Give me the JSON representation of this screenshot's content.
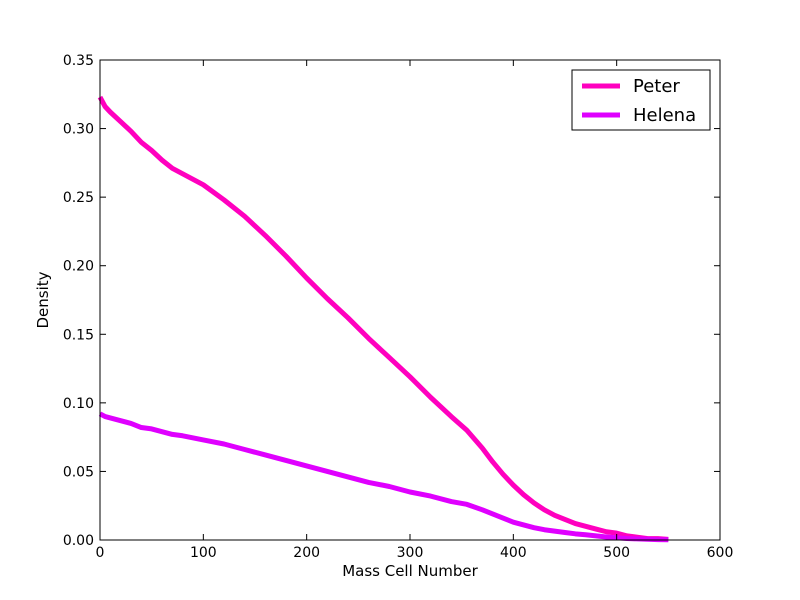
{
  "chart_data": {
    "type": "line",
    "title": "",
    "xlabel": "Mass Cell Number",
    "ylabel": "Density",
    "xlim": [
      0,
      600
    ],
    "ylim": [
      0,
      0.35
    ],
    "xticks": [
      0,
      100,
      200,
      300,
      400,
      500,
      600
    ],
    "xtick_labels": [
      "0",
      "100",
      "200",
      "300",
      "400",
      "500",
      "600"
    ],
    "yticks": [
      0.0,
      0.05,
      0.1,
      0.15,
      0.2,
      0.25,
      0.3,
      0.35
    ],
    "ytick_labels": [
      "0.00",
      "0.05",
      "0.10",
      "0.15",
      "0.20",
      "0.25",
      "0.30",
      "0.35"
    ],
    "grid": false,
    "legend": {
      "position": "top-right"
    },
    "series": [
      {
        "name": "Peter",
        "color": "#ff00bf",
        "x": [
          0,
          5,
          10,
          20,
          30,
          40,
          50,
          60,
          70,
          80,
          100,
          120,
          140,
          160,
          180,
          200,
          220,
          240,
          260,
          280,
          300,
          320,
          340,
          355,
          370,
          380,
          390,
          400,
          410,
          420,
          430,
          440,
          450,
          460,
          470,
          480,
          490,
          500,
          510,
          520,
          530,
          540,
          550
        ],
        "y": [
          0.323,
          0.316,
          0.312,
          0.305,
          0.298,
          0.29,
          0.284,
          0.277,
          0.271,
          0.267,
          0.259,
          0.248,
          0.236,
          0.222,
          0.207,
          0.191,
          0.176,
          0.162,
          0.147,
          0.133,
          0.119,
          0.104,
          0.09,
          0.08,
          0.067,
          0.057,
          0.048,
          0.04,
          0.033,
          0.027,
          0.022,
          0.018,
          0.015,
          0.012,
          0.01,
          0.008,
          0.006,
          0.005,
          0.003,
          0.002,
          0.001,
          0.001,
          0.0005
        ]
      },
      {
        "name": "Helena",
        "color": "#df00ff",
        "x": [
          0,
          5,
          10,
          20,
          30,
          40,
          50,
          60,
          70,
          80,
          100,
          120,
          140,
          160,
          180,
          200,
          220,
          240,
          260,
          280,
          300,
          320,
          340,
          355,
          370,
          380,
          390,
          400,
          410,
          420,
          430,
          440,
          450,
          460,
          470,
          480,
          490,
          500,
          510,
          520,
          530,
          540,
          550
        ],
        "y": [
          0.092,
          0.09,
          0.089,
          0.087,
          0.085,
          0.082,
          0.081,
          0.079,
          0.077,
          0.076,
          0.073,
          0.07,
          0.066,
          0.062,
          0.058,
          0.054,
          0.05,
          0.046,
          0.042,
          0.039,
          0.035,
          0.032,
          0.028,
          0.026,
          0.022,
          0.019,
          0.016,
          0.013,
          0.011,
          0.009,
          0.0075,
          0.0065,
          0.0055,
          0.0045,
          0.0038,
          0.003,
          0.0022,
          0.0016,
          0.0011,
          0.0008,
          0.0005,
          0.0003,
          0.0002
        ]
      }
    ]
  }
}
